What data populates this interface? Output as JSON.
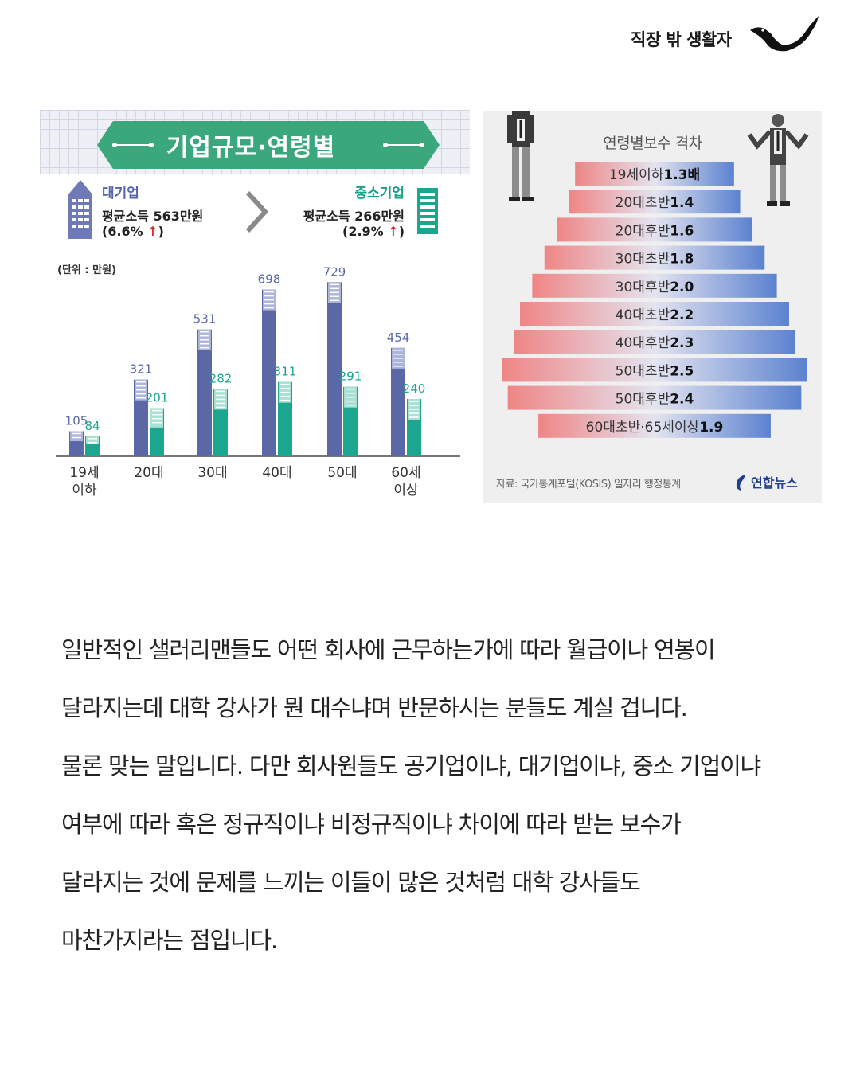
{
  "header": {
    "brand": "직장 밖 생활자"
  },
  "left_chart": {
    "title": "기업규모·연령별",
    "unit_label": "(단위 : 만원)",
    "large": {
      "label": "대기업",
      "income": "평균소득 563만원",
      "change": "(6.6%",
      "arrow": "↑",
      "close": ")"
    },
    "small": {
      "label": "중소기업",
      "income": "평균소득 266만원",
      "change": "(2.9%",
      "arrow": "↑",
      "close": ")"
    }
  },
  "right_chart": {
    "title": "연령별보수 격차",
    "source": "자료: 국가통계포털(KOSIS) 일자리 행정통계",
    "agency": "연합뉴스"
  },
  "chart_data": [
    {
      "type": "bar",
      "title": "기업규모·연령별",
      "categories": [
        "19세\n이하",
        "20대",
        "30대",
        "40대",
        "50대",
        "60세\n이상"
      ],
      "series": [
        {
          "name": "대기업",
          "values": [
            105,
            321,
            531,
            698,
            729,
            454
          ],
          "color": "#5b68a8"
        },
        {
          "name": "중소기업",
          "values": [
            84,
            201,
            282,
            311,
            291,
            240
          ],
          "color": "#1ca58f"
        }
      ],
      "ylim": [
        0,
        800
      ],
      "grid": false
    },
    {
      "type": "bar",
      "title": "연령별보수 격차",
      "orientation": "horizontal",
      "categories": [
        "19세 이하",
        "20대 초반",
        "20대 후반",
        "30대 초반",
        "30대 후반",
        "40대 초반",
        "40대 후반",
        "50대 초반",
        "50대 후반",
        "60대 초반·65세 이상"
      ],
      "suffix": [
        "배",
        "",
        "",
        "",
        "",
        "",
        "",
        "",
        "",
        ""
      ],
      "values": [
        1.3,
        1.4,
        1.6,
        1.8,
        2.0,
        2.2,
        2.3,
        2.5,
        2.4,
        1.9
      ],
      "colors": {
        "left": "#ef8585",
        "right": "#5b82d0"
      }
    }
  ],
  "body": {
    "lines": [
      "일반적인 샐러리맨들도 어떤 회사에 근무하는가에 따라 월급이나 연봉이",
      "달라지는데 대학 강사가 뭔 대수냐며 반문하시는 분들도 계실 겁니다.",
      "물론 맞는 말입니다. 다만 회사원들도 공기업이냐, 대기업이냐, 중소 기업이냐",
      "여부에 따라 혹은 정규직이냐 비정규직이냐 차이에 따라 받는 보수가",
      "달라지는 것에 문제를 느끼는 이들이 많은 것처럼 대학 강사들도",
      "마찬가지라는 점입니다."
    ]
  }
}
